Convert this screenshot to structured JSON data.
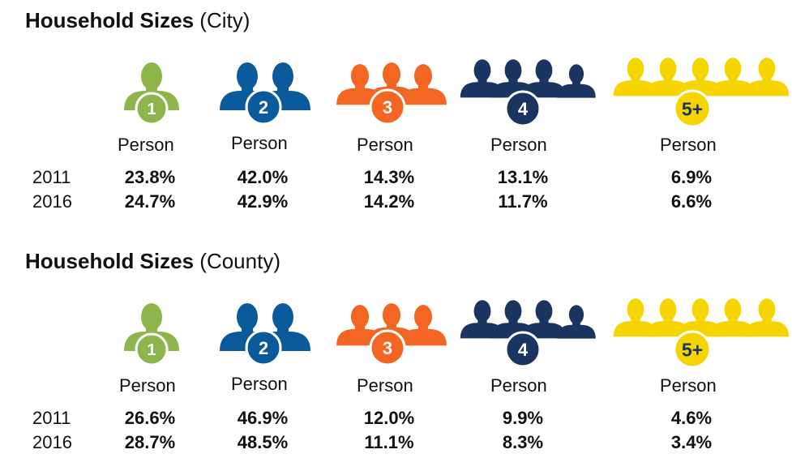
{
  "chart_data": [
    {
      "type": "table",
      "title_bold": "Household Sizes",
      "title_paren": "(City)",
      "row_labels": [
        "2011",
        "2016"
      ],
      "categories": [
        {
          "badge": "1",
          "label": "Person",
          "color": "#8db54b"
        },
        {
          "badge": "2",
          "label": "Person",
          "color": "#0a5a9c"
        },
        {
          "badge": "3",
          "label": "Person",
          "color": "#f26522"
        },
        {
          "badge": "4",
          "label": "Person",
          "color": "#1b3561"
        },
        {
          "badge": "5+",
          "label": "Person",
          "color": "#f5d400"
        }
      ],
      "values_text": [
        [
          "23.8%",
          "42.0%",
          "14.3%",
          "13.1%",
          "6.9%"
        ],
        [
          "24.7%",
          "42.9%",
          "14.2%",
          "11.7%",
          "6.6%"
        ]
      ],
      "series": [
        {
          "name": "2011",
          "values": [
            23.8,
            42.0,
            14.3,
            13.1,
            6.9
          ]
        },
        {
          "name": "2016",
          "values": [
            24.7,
            42.9,
            14.2,
            11.7,
            6.6
          ]
        }
      ]
    },
    {
      "type": "table",
      "title_bold": "Household Sizes",
      "title_paren": "(County)",
      "row_labels": [
        "2011",
        "2016"
      ],
      "categories": [
        {
          "badge": "1",
          "label": "Person",
          "color": "#8db54b"
        },
        {
          "badge": "2",
          "label": "Person",
          "color": "#0a5a9c"
        },
        {
          "badge": "3",
          "label": "Person",
          "color": "#f26522"
        },
        {
          "badge": "4",
          "label": "Person",
          "color": "#1b3561"
        },
        {
          "badge": "5+",
          "label": "Person",
          "color": "#f5d400"
        }
      ],
      "values_text": [
        [
          "26.6%",
          "46.9%",
          "12.0%",
          "9.9%",
          "4.6%"
        ],
        [
          "28.7%",
          "48.5%",
          "11.1%",
          "8.3%",
          "3.4%"
        ]
      ],
      "series": [
        {
          "name": "2011",
          "values": [
            26.6,
            46.9,
            12.0,
            9.9,
            4.6
          ]
        },
        {
          "name": "2016",
          "values": [
            28.7,
            48.5,
            11.1,
            8.3,
            3.4
          ]
        }
      ]
    }
  ],
  "icons": [
    "one-person-icon",
    "two-people-icon",
    "three-people-icon",
    "four-people-icon",
    "five-plus-people-icon"
  ],
  "badge_text_color_on_yellow": "#1b3561"
}
